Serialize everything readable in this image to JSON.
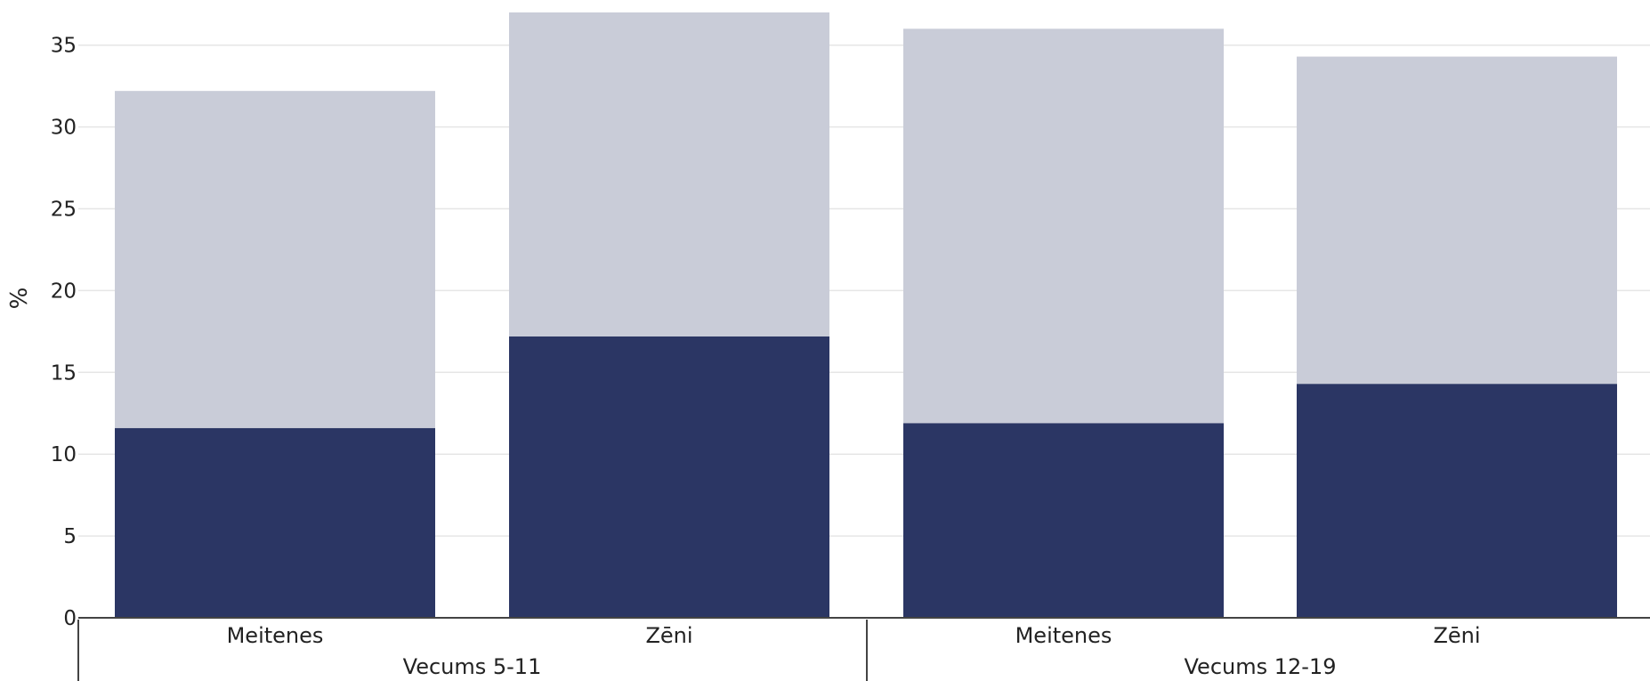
{
  "chart_data": {
    "type": "bar",
    "stacked": true,
    "ylabel": "%",
    "ylim": [
      0,
      37
    ],
    "yticks": [
      0,
      5,
      10,
      15,
      20,
      25,
      30,
      35
    ],
    "grid": true,
    "categories": [
      "Meitenes",
      "Zēni",
      "Meitenes",
      "Zēni"
    ],
    "groups": [
      {
        "label": "Vecums 5-11",
        "categories": [
          0,
          1
        ]
      },
      {
        "label": "Vecums 12-19",
        "categories": [
          2,
          3
        ]
      }
    ],
    "series": [
      {
        "values": [
          11.6,
          17.2,
          11.9,
          14.3
        ],
        "color": "#2b3664"
      },
      {
        "values": [
          20.6,
          19.8,
          24.1,
          20.0
        ],
        "color": "#c9ccd8"
      }
    ]
  }
}
